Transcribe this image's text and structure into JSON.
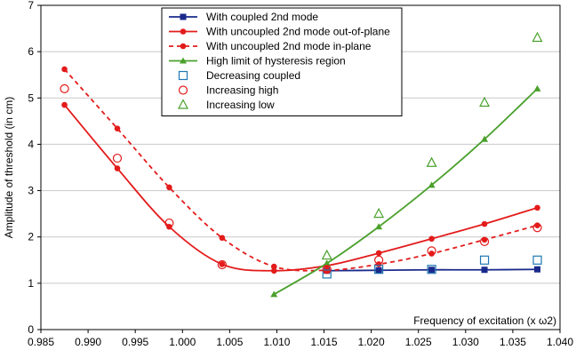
{
  "chart_data": {
    "type": "line",
    "title": "",
    "xlabel": "Frequency of excitation (x ω2)",
    "ylabel": "Amplitude of threshold (in cm)",
    "xlim": [
      0.985,
      1.04
    ],
    "ylim": [
      0,
      7
    ],
    "x_ticks": [
      "0.985",
      "0.990",
      "0.995",
      "1.000",
      "1.005",
      "1.010",
      "1.015",
      "1.020",
      "1.025",
      "1.030",
      "1.035",
      "1.040"
    ],
    "y_ticks": [
      "0",
      "1",
      "2",
      "3",
      "4",
      "5",
      "6",
      "7"
    ],
    "grid": "horizontal",
    "legend_position": "top-center",
    "series": [
      {
        "name": "With coupled 2nd mode",
        "style": "solid-line-square-marker",
        "color": "#1a2a8c",
        "x": [
          1.0153,
          1.0208,
          1.0264,
          1.032,
          1.0376
        ],
        "y": [
          1.27,
          1.28,
          1.29,
          1.29,
          1.3
        ]
      },
      {
        "name": "With uncoupled 2nd mode out-of-plane",
        "style": "solid-line-dot-marker",
        "color": "#e31b1b",
        "x": [
          0.9875,
          0.9931,
          0.9986,
          1.0042,
          1.0097,
          1.0153,
          1.0208,
          1.0264,
          1.032,
          1.0376
        ],
        "y": [
          4.85,
          3.48,
          2.22,
          1.41,
          1.27,
          1.38,
          1.65,
          1.96,
          2.28,
          2.63
        ]
      },
      {
        "name": "With uncoupled 2nd mode in-plane",
        "style": "dashed-line-dot-marker",
        "color": "#e31b1b",
        "x": [
          0.9875,
          0.9931,
          0.9986,
          1.0042,
          1.0097,
          1.0153,
          1.0208,
          1.0264,
          1.032,
          1.0376
        ],
        "y": [
          5.62,
          4.34,
          3.07,
          1.98,
          1.36,
          1.28,
          1.41,
          1.64,
          1.94,
          2.25
        ]
      },
      {
        "name": "High limit of hysteresis region",
        "style": "solid-line-triangle-marker",
        "color": "#4aa02c",
        "x": [
          1.0097,
          1.0153,
          1.0208,
          1.0264,
          1.032,
          1.0376
        ],
        "y": [
          0.76,
          1.43,
          2.22,
          3.12,
          4.11,
          5.2
        ]
      },
      {
        "name": "Decreasing coupled",
        "style": "open-square",
        "color": "#1f77b4",
        "x": [
          1.0153,
          1.0208,
          1.0264,
          1.032,
          1.0376
        ],
        "y": [
          1.2,
          1.3,
          1.3,
          1.5,
          1.5
        ]
      },
      {
        "name": "Increasing high",
        "style": "open-circle",
        "color": "#e31b1b",
        "x": [
          0.9875,
          0.9931,
          0.9986,
          1.0042,
          1.0153,
          1.0208,
          1.0264,
          1.032,
          1.0376
        ],
        "y": [
          5.2,
          3.7,
          2.3,
          1.4,
          1.3,
          1.5,
          1.7,
          1.9,
          2.2
        ]
      },
      {
        "name": "Increasing low",
        "style": "open-triangle",
        "color": "#4aa02c",
        "x": [
          1.0153,
          1.0208,
          1.0264,
          1.032,
          1.0376
        ],
        "y": [
          1.6,
          2.5,
          3.6,
          4.9,
          6.3
        ]
      }
    ]
  }
}
